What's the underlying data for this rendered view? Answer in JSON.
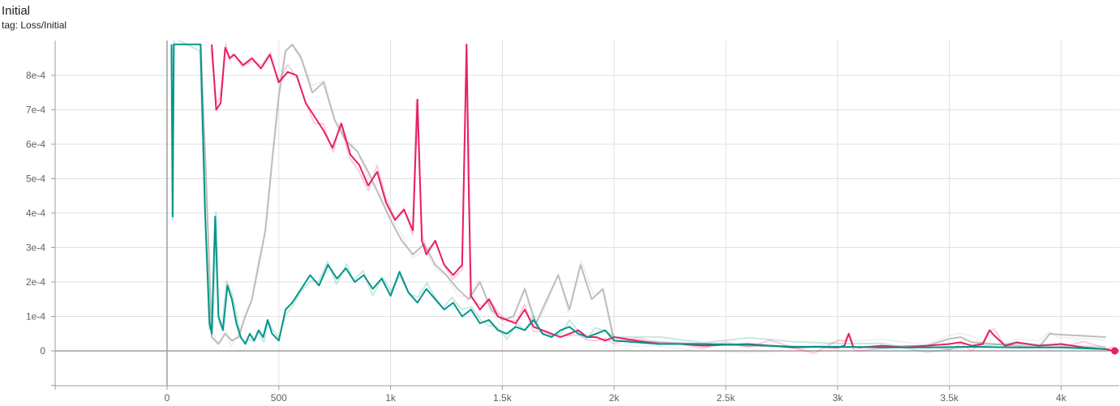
{
  "card": {
    "title": "Initial",
    "tag": "tag: Loss/Initial"
  },
  "chart_data": {
    "type": "line",
    "title": "Initial",
    "subtitle": "tag: Loss/Initial",
    "xlabel": "",
    "ylabel": "",
    "xlim": [
      -500,
      4300
    ],
    "ylim": [
      -0.0001,
      0.00089
    ],
    "x_ticks": [
      0,
      500,
      1000,
      1500,
      2000,
      2500,
      3000,
      3500,
      4000
    ],
    "x_tick_labels": [
      "0",
      "500",
      "1k",
      "1.5k",
      "2k",
      "2.5k",
      "3k",
      "3.5k",
      "4k"
    ],
    "y_ticks": [
      0,
      0.0001,
      0.0002,
      0.0003,
      0.0004,
      0.0005,
      0.0006,
      0.0007,
      0.0008
    ],
    "y_tick_labels": [
      "0",
      "1e-4",
      "2e-4",
      "3e-4",
      "4e-4",
      "5e-4",
      "6e-4",
      "7e-4",
      "8e-4"
    ],
    "grid": true,
    "legend": "none",
    "series": [
      {
        "color": "#bdbdbd",
        "x": [
          150,
          175,
          200,
          230,
          260,
          290,
          320,
          350,
          380,
          410,
          440,
          470,
          500,
          530,
          560,
          600,
          650,
          700,
          750,
          800,
          850,
          900,
          950,
          1000,
          1050,
          1100,
          1150,
          1200,
          1250,
          1300,
          1350,
          1400,
          1450,
          1500,
          1550,
          1600,
          1650,
          1700,
          1750,
          1800,
          1850,
          1900,
          1950,
          2000,
          2200,
          2400,
          2600,
          2800,
          3000,
          3200,
          3400,
          3500,
          3550,
          3600,
          3700,
          3800,
          3900,
          3950,
          3980,
          4200
        ],
        "y": [
          0.00089,
          0.0005,
          4e-05,
          2e-05,
          5e-05,
          3e-05,
          4e-05,
          0.0001,
          0.00015,
          0.00025,
          0.00035,
          0.00055,
          0.00074,
          0.00087,
          0.00089,
          0.00085,
          0.00075,
          0.00078,
          0.00067,
          0.00061,
          0.00058,
          0.00052,
          0.00045,
          0.00038,
          0.00032,
          0.00028,
          0.00031,
          0.00025,
          0.00022,
          0.00018,
          0.00015,
          0.0002,
          0.00012,
          9e-05,
          0.0001,
          0.00018,
          8e-05,
          0.00015,
          0.00022,
          0.00012,
          0.00025,
          0.00015,
          0.00018,
          3e-05,
          2.5e-05,
          2e-05,
          1.5e-05,
          1.2e-05,
          1e-05,
          1.2e-05,
          1.5e-05,
          3.5e-05,
          4e-05,
          2.5e-05,
          2e-05,
          1.5e-05,
          1e-05,
          5e-05,
          4.8e-05,
          4e-05
        ]
      },
      {
        "color": "#e91e63",
        "x": [
          200,
          220,
          240,
          260,
          280,
          300,
          340,
          380,
          420,
          460,
          500,
          540,
          580,
          620,
          660,
          700,
          740,
          780,
          820,
          860,
          900,
          940,
          980,
          1020,
          1060,
          1100,
          1120,
          1140,
          1160,
          1200,
          1240,
          1280,
          1320,
          1340,
          1350,
          1360,
          1400,
          1440,
          1480,
          1520,
          1560,
          1600,
          1640,
          1680,
          1720,
          1760,
          1800,
          1840,
          1880,
          1920,
          1960,
          2000,
          2100,
          2200,
          2300,
          2400,
          2500,
          2600,
          2700,
          2800,
          2900,
          3000,
          3030,
          3050,
          3070,
          3100,
          3200,
          3300,
          3400,
          3500,
          3550,
          3600,
          3650,
          3680,
          3700,
          3750,
          3800,
          3900,
          4000,
          4100,
          4200,
          4240
        ],
        "y": [
          0.00089,
          0.0007,
          0.00072,
          0.00088,
          0.00085,
          0.00086,
          0.00083,
          0.00085,
          0.00082,
          0.00086,
          0.00078,
          0.00081,
          0.0008,
          0.00072,
          0.00068,
          0.00064,
          0.00059,
          0.00066,
          0.00057,
          0.00054,
          0.00048,
          0.00052,
          0.00043,
          0.00038,
          0.00041,
          0.00035,
          0.00073,
          0.00032,
          0.00028,
          0.00032,
          0.00025,
          0.00022,
          0.00025,
          0.00089,
          0.00045,
          0.00016,
          0.00012,
          0.00015,
          0.0001,
          9e-05,
          8e-05,
          0.00012,
          7e-05,
          6e-05,
          5e-05,
          4e-05,
          5e-05,
          6e-05,
          4e-05,
          4e-05,
          3e-05,
          4e-05,
          3e-05,
          2e-05,
          2e-05,
          1.5e-05,
          1.8e-05,
          2e-05,
          1.5e-05,
          1e-05,
          1.2e-05,
          1e-05,
          1.5e-05,
          5e-05,
          1.2e-05,
          1e-05,
          1.5e-05,
          1e-05,
          1.5e-05,
          2e-05,
          2.5e-05,
          1.5e-05,
          2e-05,
          6e-05,
          4.5e-05,
          1.5e-05,
          2.5e-05,
          1.5e-05,
          2e-05,
          1e-05,
          5e-06,
          0.0
        ]
      },
      {
        "color": "#009688",
        "x": [
          20,
          25,
          30,
          150,
          170,
          190,
          200,
          215,
          230,
          250,
          270,
          290,
          310,
          330,
          350,
          370,
          390,
          410,
          430,
          450,
          470,
          500,
          530,
          560,
          600,
          640,
          680,
          720,
          760,
          800,
          840,
          880,
          920,
          960,
          1000,
          1040,
          1080,
          1120,
          1160,
          1200,
          1240,
          1280,
          1320,
          1360,
          1400,
          1440,
          1480,
          1520,
          1560,
          1600,
          1640,
          1680,
          1720,
          1760,
          1800,
          1840,
          1880,
          1920,
          1960,
          2000,
          2200,
          2400,
          2600,
          2800,
          3000,
          3200,
          3400,
          3600,
          3800,
          4000,
          4200
        ],
        "y": [
          0.00089,
          0.00039,
          0.00089,
          0.00089,
          0.0004,
          8e-05,
          5e-05,
          0.00039,
          0.0001,
          6e-05,
          0.00019,
          0.00015,
          8e-05,
          4e-05,
          2e-05,
          5e-05,
          3e-05,
          6e-05,
          4e-05,
          9e-05,
          5e-05,
          3e-05,
          0.00012,
          0.00014,
          0.00018,
          0.00022,
          0.00019,
          0.00025,
          0.00021,
          0.00024,
          0.0002,
          0.00022,
          0.00018,
          0.00021,
          0.00016,
          0.00023,
          0.00017,
          0.00014,
          0.00018,
          0.00015,
          0.00012,
          0.00014,
          0.0001,
          0.00012,
          8e-05,
          9e-05,
          6e-05,
          5e-05,
          7e-05,
          6e-05,
          9e-05,
          5e-05,
          4e-05,
          6e-05,
          7e-05,
          5e-05,
          4e-05,
          5e-05,
          6e-05,
          3e-05,
          2e-05,
          2e-05,
          1.8e-05,
          1.2e-05,
          1.2e-05,
          1e-05,
          1e-05,
          1.2e-05,
          1e-05,
          1e-05,
          5e-06
        ]
      }
    ]
  }
}
